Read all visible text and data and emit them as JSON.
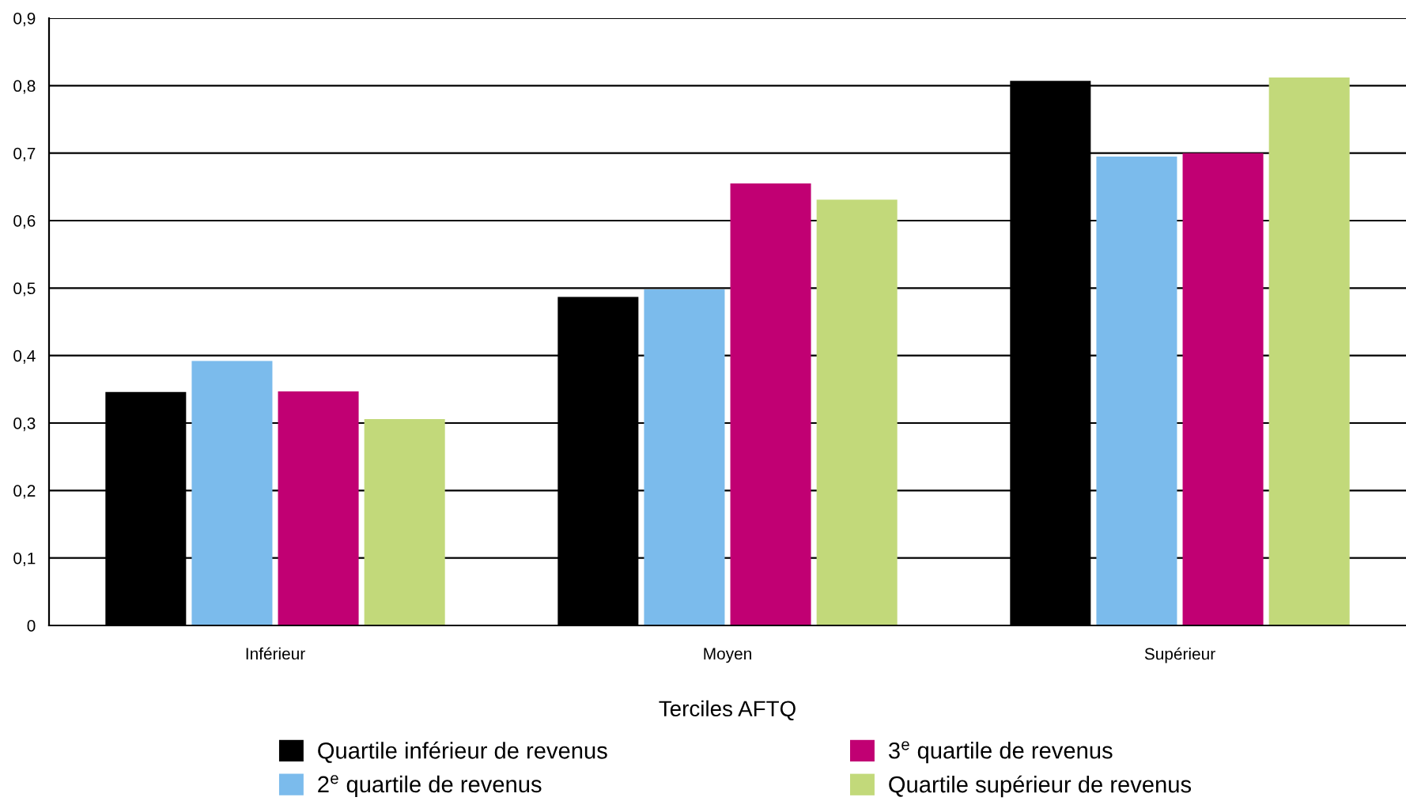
{
  "chart_data": {
    "type": "bar",
    "xlabel": "Terciles AFTQ",
    "categories": [
      "Inférieur",
      "Moyen",
      "Supérieur"
    ],
    "series": [
      {
        "name": "Quartile inférieur de revenus",
        "color": "#000000",
        "values": [
          0.346,
          0.487,
          0.807
        ]
      },
      {
        "name": "2$^{e}$ quartile de revenus",
        "color": "#7bbbec",
        "values": [
          0.392,
          0.498,
          0.695
        ]
      },
      {
        "name": "3$^{e}$ quartile de revenus",
        "color": "#c10073",
        "values": [
          0.347,
          0.655,
          0.7
        ]
      },
      {
        "name": "Quartile supérieur de revenus",
        "color": "#c2d97a",
        "values": [
          0.306,
          0.631,
          0.812
        ]
      }
    ],
    "ylim": [
      0,
      0.9
    ],
    "yticks": [
      0,
      {
        "value": 0.1,
        "label": "0,1"
      },
      {
        "value": 0.2,
        "label": "0,2"
      },
      {
        "value": 0.3,
        "label": "0,3"
      },
      {
        "value": 0.4,
        "label": "0,4"
      },
      {
        "value": 0.5,
        "label": "0,5"
      },
      {
        "value": 0.6,
        "label": "0,6"
      },
      {
        "value": 0.7,
        "label": "0,7"
      },
      {
        "value": 0.8,
        "label": "0,8"
      },
      {
        "value": 0.9,
        "label": "0,9"
      }
    ],
    "grid": "y",
    "legend": "bottom"
  }
}
